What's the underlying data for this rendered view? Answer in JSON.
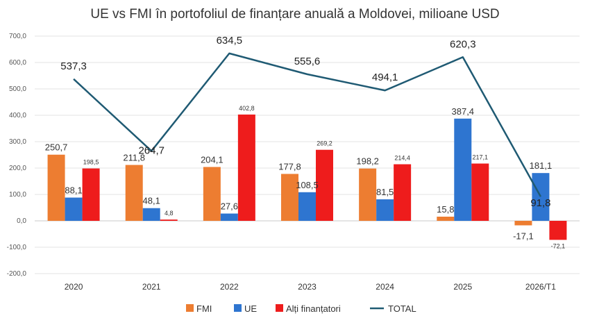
{
  "chart_data": {
    "type": "bar",
    "title": "UE vs FMI în portofoliul de finanțare anuală a Moldovei, milioane USD",
    "categories": [
      "2020",
      "2021",
      "2022",
      "2023",
      "2024",
      "2025",
      "2026/T1"
    ],
    "ylim": [
      -200,
      700
    ],
    "yticks": [
      "-200,0",
      "-100,0",
      "0,0",
      "100,0",
      "200,0",
      "300,0",
      "400,0",
      "500,0",
      "600,0",
      "700,0"
    ],
    "grid": true,
    "legend_position": "bottom",
    "series": [
      {
        "name": "FMI",
        "type": "bar",
        "color": "#ED7D31",
        "values": [
          250.7,
          211.8,
          204.1,
          177.8,
          198.2,
          15.8,
          -17.1
        ],
        "labels": [
          "250,7",
          "211,8",
          "204,1",
          "177,8",
          "198,2",
          "15,8",
          "-17,1"
        ]
      },
      {
        "name": "UE",
        "type": "bar",
        "color": "#2E75D0",
        "values": [
          88.1,
          48.1,
          27.6,
          108.5,
          81.5,
          387.4,
          181.1
        ],
        "labels": [
          "88,1",
          "48,1",
          "27,6",
          "108,5",
          "81,5",
          "387,4",
          "181,1"
        ]
      },
      {
        "name": "Alți finanțatori",
        "type": "bar",
        "color": "#EE1C1C",
        "values": [
          198.5,
          4.8,
          402.8,
          269.2,
          214.4,
          217.1,
          -72.1
        ],
        "labels": [
          "198,5",
          "4,8",
          "402,8",
          "269,2",
          "214,4",
          "217,1",
          "-72,1"
        ]
      },
      {
        "name": "TOTAL",
        "type": "line",
        "color": "#1F5A73",
        "values": [
          537.3,
          264.7,
          634.5,
          555.6,
          494.1,
          620.3,
          91.8
        ],
        "labels": [
          "537,3",
          "264,7",
          "634,5",
          "555,6",
          "494,1",
          "620,3",
          "91,8"
        ]
      }
    ]
  }
}
